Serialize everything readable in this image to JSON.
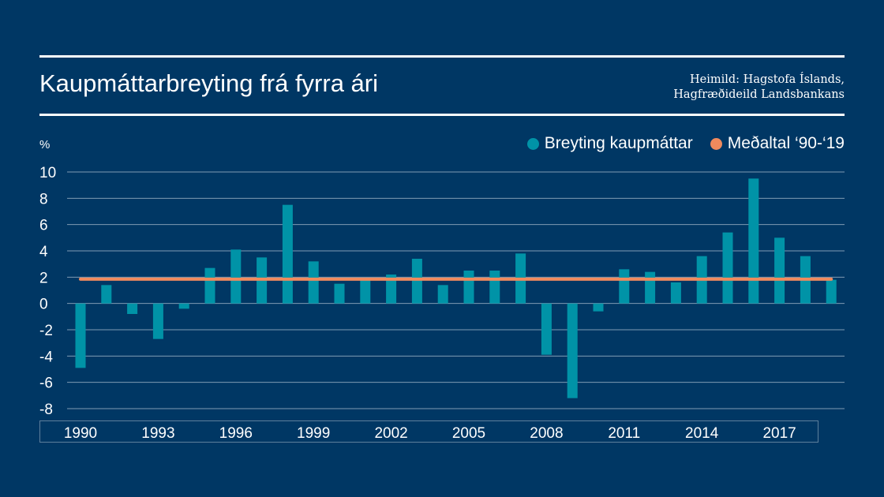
{
  "header": {
    "title": "Kaupmáttarbreyting frá fyrra ári",
    "source_line1": "Heimild: Hagstofa Íslands,",
    "source_line2": "Hagfræðideild Landsbankans"
  },
  "legend": {
    "bars_label": "Breyting kaupmáttar",
    "avg_label": "Meðaltal ‘90-‘19"
  },
  "colors": {
    "background": "#003764",
    "bars": "#0093a7",
    "average": "#f08a5d",
    "grid": "#7f9bb3"
  },
  "chart_data": {
    "type": "bar",
    "ylabel": "%",
    "ylim": [
      -8,
      10
    ],
    "yticks": [
      10,
      8,
      6,
      4,
      2,
      0,
      -2,
      -4,
      -6,
      -8
    ],
    "xtick_labels": [
      "1990",
      "1993",
      "1996",
      "1999",
      "2002",
      "2005",
      "2008",
      "2011",
      "2014",
      "2017"
    ],
    "categories": [
      "1990",
      "1991",
      "1992",
      "1993",
      "1994",
      "1995",
      "1996",
      "1997",
      "1998",
      "1999",
      "2000",
      "2001",
      "2002",
      "2003",
      "2004",
      "2005",
      "2006",
      "2007",
      "2008",
      "2009",
      "2010",
      "2011",
      "2012",
      "2013",
      "2014",
      "2015",
      "2016",
      "2017",
      "2018",
      "2019"
    ],
    "series": [
      {
        "name": "Breyting kaupmáttar",
        "values": [
          -4.9,
          1.4,
          -0.8,
          -2.7,
          -0.4,
          2.7,
          4.1,
          3.5,
          7.5,
          3.2,
          1.5,
          1.8,
          2.2,
          3.4,
          1.4,
          2.5,
          2.5,
          3.8,
          -3.9,
          -7.2,
          -0.6,
          2.6,
          2.4,
          1.6,
          3.6,
          5.4,
          9.5,
          5.0,
          3.6,
          1.8
        ]
      },
      {
        "name": "Meðaltal ‘90-‘19",
        "value": 1.85
      }
    ],
    "grid": true,
    "legend_position": "top-right"
  }
}
